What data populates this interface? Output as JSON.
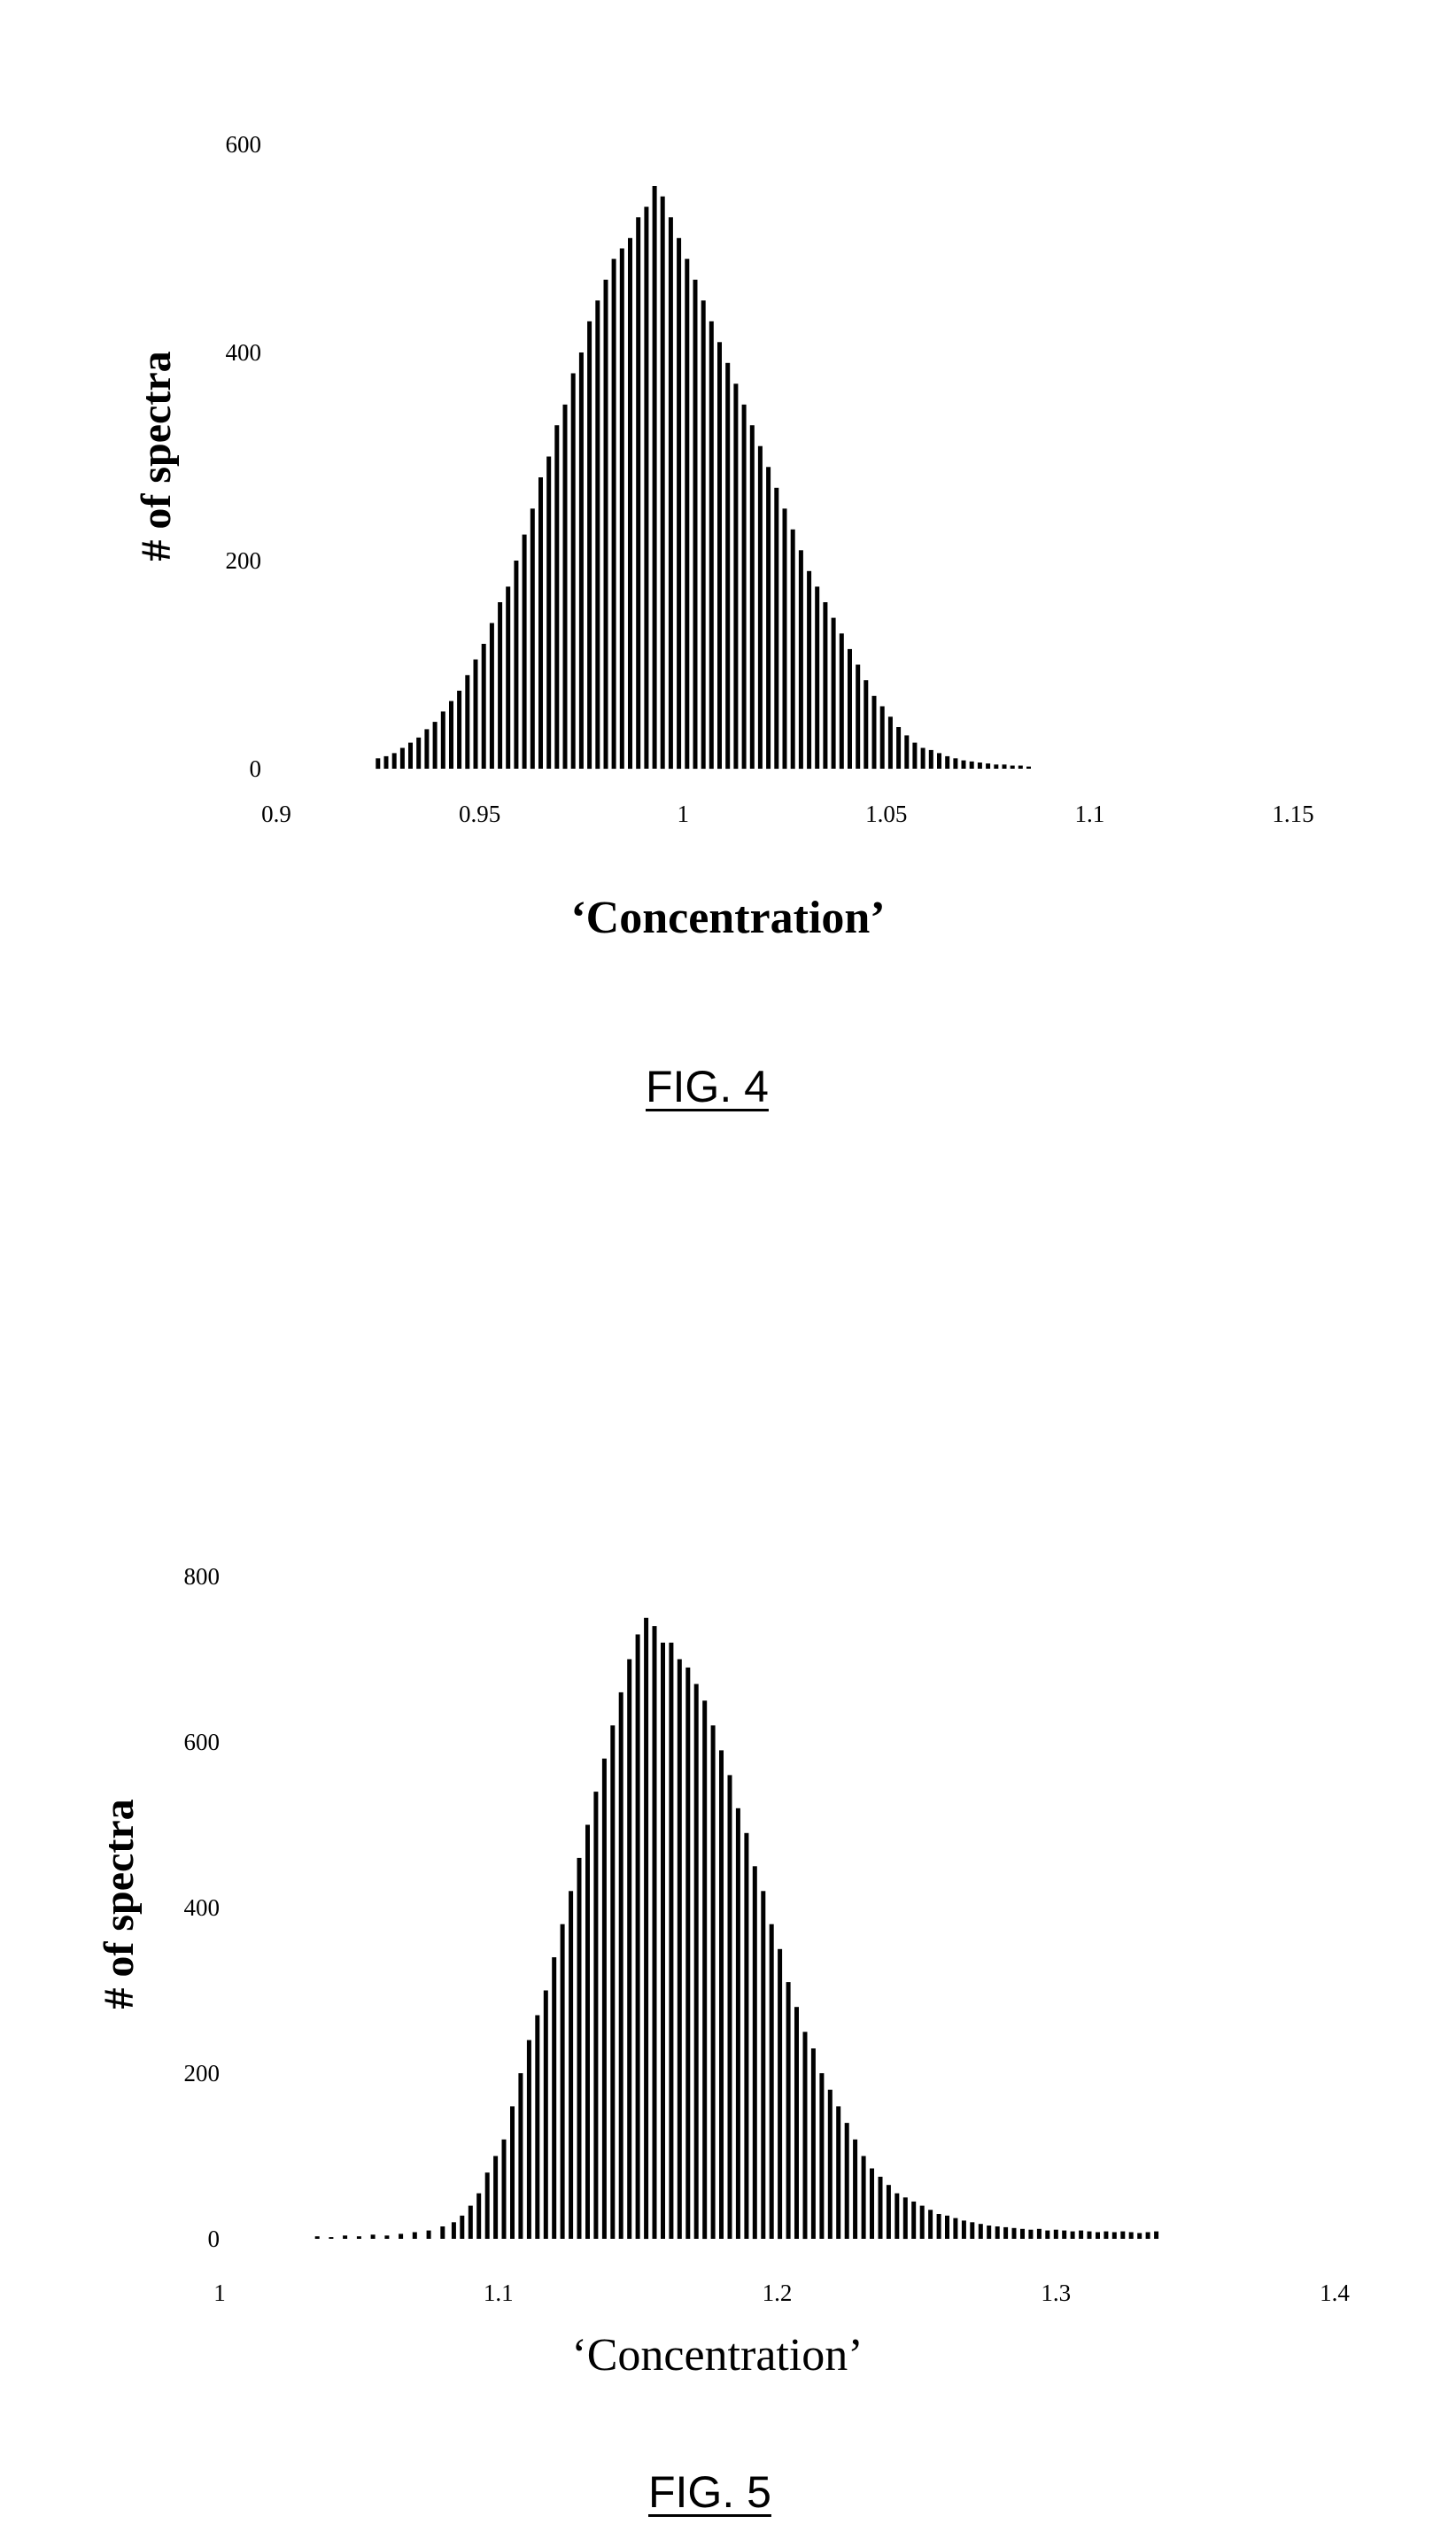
{
  "chart_data": [
    {
      "type": "bar",
      "caption": "FIG. 4",
      "xlabel": "‘Concentration’",
      "ylabel": "# of spectra",
      "xlim": [
        0.9,
        1.15
      ],
      "ylim": [
        0,
        600
      ],
      "xticks": [
        "0.9",
        "0.95",
        "1",
        "1.05",
        "1.1",
        "1.15"
      ],
      "yticks": [
        "0",
        "200",
        "400",
        "600"
      ],
      "grid": false,
      "x": [
        0.925,
        0.927,
        0.929,
        0.931,
        0.933,
        0.935,
        0.937,
        0.939,
        0.941,
        0.943,
        0.945,
        0.947,
        0.949,
        0.951,
        0.953,
        0.955,
        0.957,
        0.959,
        0.961,
        0.963,
        0.965,
        0.967,
        0.969,
        0.971,
        0.973,
        0.975,
        0.977,
        0.979,
        0.981,
        0.983,
        0.985,
        0.987,
        0.989,
        0.991,
        0.993,
        0.995,
        0.997,
        0.999,
        1.001,
        1.003,
        1.005,
        1.007,
        1.009,
        1.011,
        1.013,
        1.015,
        1.017,
        1.019,
        1.021,
        1.023,
        1.025,
        1.027,
        1.029,
        1.031,
        1.033,
        1.035,
        1.037,
        1.039,
        1.041,
        1.043,
        1.045,
        1.047,
        1.049,
        1.051,
        1.053,
        1.055,
        1.057,
        1.059,
        1.061,
        1.063,
        1.065,
        1.067,
        1.069,
        1.071,
        1.073,
        1.075,
        1.077,
        1.079,
        1.081,
        1.083,
        1.085
      ],
      "values": [
        10,
        12,
        15,
        20,
        25,
        30,
        38,
        45,
        55,
        65,
        75,
        90,
        105,
        120,
        140,
        160,
        175,
        200,
        225,
        250,
        280,
        300,
        330,
        350,
        380,
        400,
        430,
        450,
        470,
        490,
        500,
        510,
        530,
        540,
        560,
        550,
        530,
        510,
        490,
        470,
        450,
        430,
        410,
        390,
        370,
        350,
        330,
        310,
        290,
        270,
        250,
        230,
        210,
        190,
        175,
        160,
        145,
        130,
        115,
        100,
        85,
        70,
        60,
        50,
        40,
        32,
        25,
        20,
        18,
        15,
        12,
        10,
        8,
        7,
        6,
        5,
        4,
        4,
        3,
        3,
        2
      ]
    },
    {
      "type": "bar",
      "caption": "FIG. 5",
      "xlabel": "‘Concentration’",
      "ylabel": "# of spectra",
      "xlim": [
        1,
        1.4
      ],
      "ylim": [
        0,
        800
      ],
      "xticks": [
        "1",
        "1.1",
        "1.2",
        "1.3",
        "1.4"
      ],
      "yticks": [
        "0",
        "200",
        "400",
        "600",
        "800"
      ],
      "grid": false,
      "x": [
        1.035,
        1.04,
        1.045,
        1.05,
        1.055,
        1.06,
        1.065,
        1.07,
        1.075,
        1.08,
        1.084,
        1.087,
        1.09,
        1.093,
        1.096,
        1.099,
        1.102,
        1.105,
        1.108,
        1.111,
        1.114,
        1.117,
        1.12,
        1.123,
        1.126,
        1.129,
        1.132,
        1.135,
        1.138,
        1.141,
        1.144,
        1.147,
        1.15,
        1.153,
        1.156,
        1.159,
        1.162,
        1.165,
        1.168,
        1.171,
        1.174,
        1.177,
        1.18,
        1.183,
        1.186,
        1.189,
        1.192,
        1.195,
        1.198,
        1.201,
        1.204,
        1.207,
        1.21,
        1.213,
        1.216,
        1.219,
        1.222,
        1.225,
        1.228,
        1.231,
        1.234,
        1.237,
        1.24,
        1.243,
        1.246,
        1.249,
        1.252,
        1.255,
        1.258,
        1.261,
        1.264,
        1.267,
        1.27,
        1.273,
        1.276,
        1.279,
        1.282,
        1.285,
        1.288,
        1.291,
        1.294,
        1.297,
        1.3,
        1.303,
        1.306,
        1.309,
        1.312,
        1.315,
        1.318,
        1.321,
        1.324,
        1.327,
        1.33,
        1.333,
        1.336
      ],
      "values": [
        3,
        2,
        4,
        3,
        5,
        4,
        6,
        8,
        10,
        15,
        20,
        28,
        40,
        55,
        80,
        100,
        120,
        160,
        200,
        240,
        270,
        300,
        340,
        380,
        420,
        460,
        500,
        540,
        580,
        620,
        660,
        700,
        730,
        750,
        740,
        720,
        720,
        700,
        690,
        670,
        650,
        620,
        590,
        560,
        520,
        490,
        450,
        420,
        380,
        350,
        310,
        280,
        250,
        230,
        200,
        180,
        160,
        140,
        120,
        100,
        85,
        75,
        65,
        55,
        50,
        45,
        40,
        35,
        30,
        28,
        25,
        22,
        20,
        18,
        16,
        15,
        14,
        13,
        12,
        11,
        12,
        10,
        11,
        10,
        9,
        10,
        9,
        8,
        9,
        8,
        9,
        8,
        7,
        8,
        9
      ]
    }
  ]
}
